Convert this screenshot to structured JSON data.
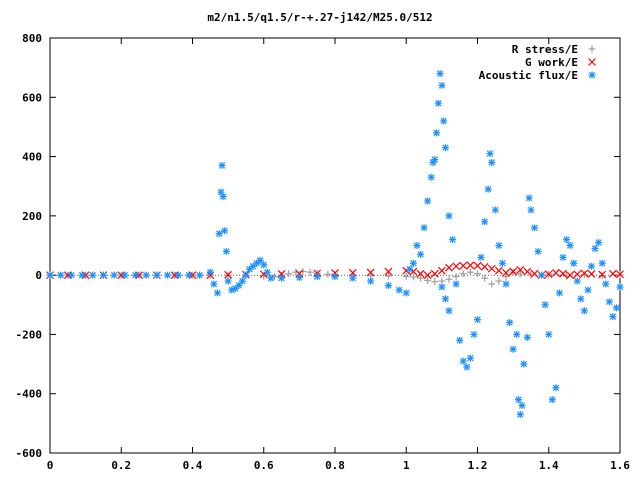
{
  "chart_data": {
    "type": "scatter",
    "title": "m2/n1.5/q1.5/r-+.27-j142/M25.0/512",
    "xlabel": "",
    "ylabel": "",
    "xlim": [
      0,
      1.6
    ],
    "ylim": [
      -600,
      800
    ],
    "x_ticks": [
      0,
      0.2,
      0.4,
      0.6,
      0.8,
      1,
      1.2,
      1.4,
      1.6
    ],
    "x_tick_labels": [
      "0",
      "0.2",
      "0.4",
      "0.6",
      "0.8",
      "1",
      "1.2",
      "1.4",
      "1.6"
    ],
    "y_ticks": [
      -600,
      -400,
      -200,
      0,
      200,
      400,
      600,
      800
    ],
    "y_tick_labels": [
      "-600",
      "-400",
      "-200",
      "0",
      "200",
      "400",
      "600",
      "800"
    ],
    "grid": false,
    "legend_position": "top-right",
    "series": [
      {
        "name": "R stress/E",
        "marker": "plus",
        "color": "#a0a0a0",
        "points": [
          [
            0.0,
            0
          ],
          [
            0.05,
            0
          ],
          [
            0.1,
            0
          ],
          [
            0.15,
            0
          ],
          [
            0.2,
            0
          ],
          [
            0.25,
            0
          ],
          [
            0.3,
            0
          ],
          [
            0.35,
            0
          ],
          [
            0.4,
            0
          ],
          [
            0.45,
            0
          ],
          [
            0.5,
            0
          ],
          [
            0.55,
            -2
          ],
          [
            0.6,
            -3
          ],
          [
            0.63,
            -5
          ],
          [
            0.65,
            0
          ],
          [
            0.67,
            5
          ],
          [
            0.69,
            10
          ],
          [
            0.71,
            12
          ],
          [
            0.73,
            10
          ],
          [
            0.75,
            6
          ],
          [
            0.78,
            3
          ],
          [
            0.8,
            2
          ],
          [
            0.85,
            0
          ],
          [
            0.9,
            -2
          ],
          [
            0.95,
            -3
          ],
          [
            1.0,
            -4
          ],
          [
            1.02,
            -6
          ],
          [
            1.04,
            -10
          ],
          [
            1.06,
            -18
          ],
          [
            1.08,
            -22
          ],
          [
            1.1,
            -20
          ],
          [
            1.12,
            -14
          ],
          [
            1.14,
            -5
          ],
          [
            1.16,
            5
          ],
          [
            1.18,
            10
          ],
          [
            1.2,
            5
          ],
          [
            1.22,
            -10
          ],
          [
            1.24,
            -30
          ],
          [
            1.26,
            -20
          ],
          [
            1.28,
            -5
          ],
          [
            1.3,
            10
          ],
          [
            1.32,
            5
          ],
          [
            1.35,
            0
          ],
          [
            1.4,
            3
          ],
          [
            1.45,
            -3
          ],
          [
            1.5,
            2
          ],
          [
            1.55,
            -2
          ],
          [
            1.6,
            1
          ]
        ]
      },
      {
        "name": "G work/E",
        "marker": "cross",
        "color": "#ff0000",
        "points": [
          [
            0.0,
            0
          ],
          [
            0.05,
            0
          ],
          [
            0.1,
            0
          ],
          [
            0.15,
            0
          ],
          [
            0.2,
            0
          ],
          [
            0.25,
            0
          ],
          [
            0.3,
            0
          ],
          [
            0.35,
            0
          ],
          [
            0.4,
            0
          ],
          [
            0.45,
            0
          ],
          [
            0.5,
            1
          ],
          [
            0.55,
            2
          ],
          [
            0.6,
            3
          ],
          [
            0.65,
            4
          ],
          [
            0.7,
            5
          ],
          [
            0.75,
            6
          ],
          [
            0.8,
            7
          ],
          [
            0.85,
            8
          ],
          [
            0.9,
            9
          ],
          [
            0.95,
            12
          ],
          [
            1.0,
            15
          ],
          [
            1.02,
            12
          ],
          [
            1.04,
            5
          ],
          [
            1.06,
            0
          ],
          [
            1.08,
            5
          ],
          [
            1.1,
            15
          ],
          [
            1.12,
            25
          ],
          [
            1.14,
            30
          ],
          [
            1.16,
            32
          ],
          [
            1.18,
            33
          ],
          [
            1.2,
            32
          ],
          [
            1.22,
            28
          ],
          [
            1.24,
            22
          ],
          [
            1.26,
            15
          ],
          [
            1.28,
            8
          ],
          [
            1.3,
            12
          ],
          [
            1.32,
            18
          ],
          [
            1.34,
            12
          ],
          [
            1.36,
            5
          ],
          [
            1.38,
            0
          ],
          [
            1.4,
            3
          ],
          [
            1.42,
            8
          ],
          [
            1.44,
            5
          ],
          [
            1.46,
            0
          ],
          [
            1.48,
            3
          ],
          [
            1.5,
            6
          ],
          [
            1.52,
            4
          ],
          [
            1.55,
            2
          ],
          [
            1.58,
            5
          ],
          [
            1.6,
            3
          ]
        ]
      },
      {
        "name": "Acoustic flux/E",
        "marker": "star",
        "color": "#1e90ff",
        "points": [
          [
            0.0,
            0
          ],
          [
            0.03,
            0
          ],
          [
            0.06,
            0
          ],
          [
            0.09,
            0
          ],
          [
            0.12,
            0
          ],
          [
            0.15,
            0
          ],
          [
            0.18,
            0
          ],
          [
            0.21,
            0
          ],
          [
            0.24,
            0
          ],
          [
            0.27,
            0
          ],
          [
            0.3,
            0
          ],
          [
            0.33,
            0
          ],
          [
            0.36,
            0
          ],
          [
            0.39,
            0
          ],
          [
            0.42,
            0
          ],
          [
            0.45,
            10
          ],
          [
            0.46,
            -30
          ],
          [
            0.47,
            -60
          ],
          [
            0.475,
            140
          ],
          [
            0.48,
            280
          ],
          [
            0.483,
            370
          ],
          [
            0.486,
            265
          ],
          [
            0.49,
            150
          ],
          [
            0.495,
            80
          ],
          [
            0.5,
            -20
          ],
          [
            0.51,
            -50
          ],
          [
            0.52,
            -45
          ],
          [
            0.53,
            -35
          ],
          [
            0.54,
            -20
          ],
          [
            0.55,
            0
          ],
          [
            0.56,
            20
          ],
          [
            0.57,
            30
          ],
          [
            0.58,
            40
          ],
          [
            0.59,
            50
          ],
          [
            0.6,
            35
          ],
          [
            0.61,
            10
          ],
          [
            0.62,
            -10
          ],
          [
            0.65,
            -10
          ],
          [
            0.7,
            -8
          ],
          [
            0.75,
            -5
          ],
          [
            0.8,
            -5
          ],
          [
            0.85,
            -10
          ],
          [
            0.9,
            -20
          ],
          [
            0.95,
            -35
          ],
          [
            0.98,
            -50
          ],
          [
            1.0,
            -60
          ],
          [
            1.01,
            20
          ],
          [
            1.02,
            40
          ],
          [
            1.03,
            100
          ],
          [
            1.04,
            70
          ],
          [
            1.05,
            160
          ],
          [
            1.06,
            250
          ],
          [
            1.07,
            330
          ],
          [
            1.075,
            380
          ],
          [
            1.08,
            390
          ],
          [
            1.085,
            480
          ],
          [
            1.09,
            580
          ],
          [
            1.095,
            680
          ],
          [
            1.1,
            640
          ],
          [
            1.105,
            520
          ],
          [
            1.11,
            430
          ],
          [
            1.12,
            200
          ],
          [
            1.13,
            120
          ],
          [
            1.12,
            -120
          ],
          [
            1.11,
            -80
          ],
          [
            1.1,
            -40
          ],
          [
            1.14,
            -30
          ],
          [
            1.15,
            -220
          ],
          [
            1.16,
            -290
          ],
          [
            1.17,
            -310
          ],
          [
            1.18,
            -280
          ],
          [
            1.19,
            -200
          ],
          [
            1.2,
            -150
          ],
          [
            1.21,
            60
          ],
          [
            1.22,
            180
          ],
          [
            1.23,
            290
          ],
          [
            1.235,
            410
          ],
          [
            1.24,
            380
          ],
          [
            1.25,
            220
          ],
          [
            1.26,
            100
          ],
          [
            1.27,
            40
          ],
          [
            1.28,
            -30
          ],
          [
            1.29,
            -160
          ],
          [
            1.3,
            -250
          ],
          [
            1.31,
            -200
          ],
          [
            1.315,
            -420
          ],
          [
            1.32,
            -470
          ],
          [
            1.325,
            -440
          ],
          [
            1.33,
            -300
          ],
          [
            1.34,
            -210
          ],
          [
            1.345,
            260
          ],
          [
            1.35,
            220
          ],
          [
            1.36,
            160
          ],
          [
            1.37,
            80
          ],
          [
            1.38,
            0
          ],
          [
            1.39,
            -100
          ],
          [
            1.4,
            -200
          ],
          [
            1.41,
            -420
          ],
          [
            1.42,
            -380
          ],
          [
            1.43,
            -60
          ],
          [
            1.44,
            60
          ],
          [
            1.45,
            120
          ],
          [
            1.46,
            100
          ],
          [
            1.47,
            40
          ],
          [
            1.48,
            -20
          ],
          [
            1.49,
            -80
          ],
          [
            1.5,
            -120
          ],
          [
            1.51,
            -50
          ],
          [
            1.52,
            30
          ],
          [
            1.53,
            90
          ],
          [
            1.54,
            110
          ],
          [
            1.55,
            40
          ],
          [
            1.56,
            -30
          ],
          [
            1.57,
            -90
          ],
          [
            1.58,
            -140
          ],
          [
            1.59,
            -110
          ],
          [
            1.6,
            -40
          ]
        ]
      }
    ]
  }
}
